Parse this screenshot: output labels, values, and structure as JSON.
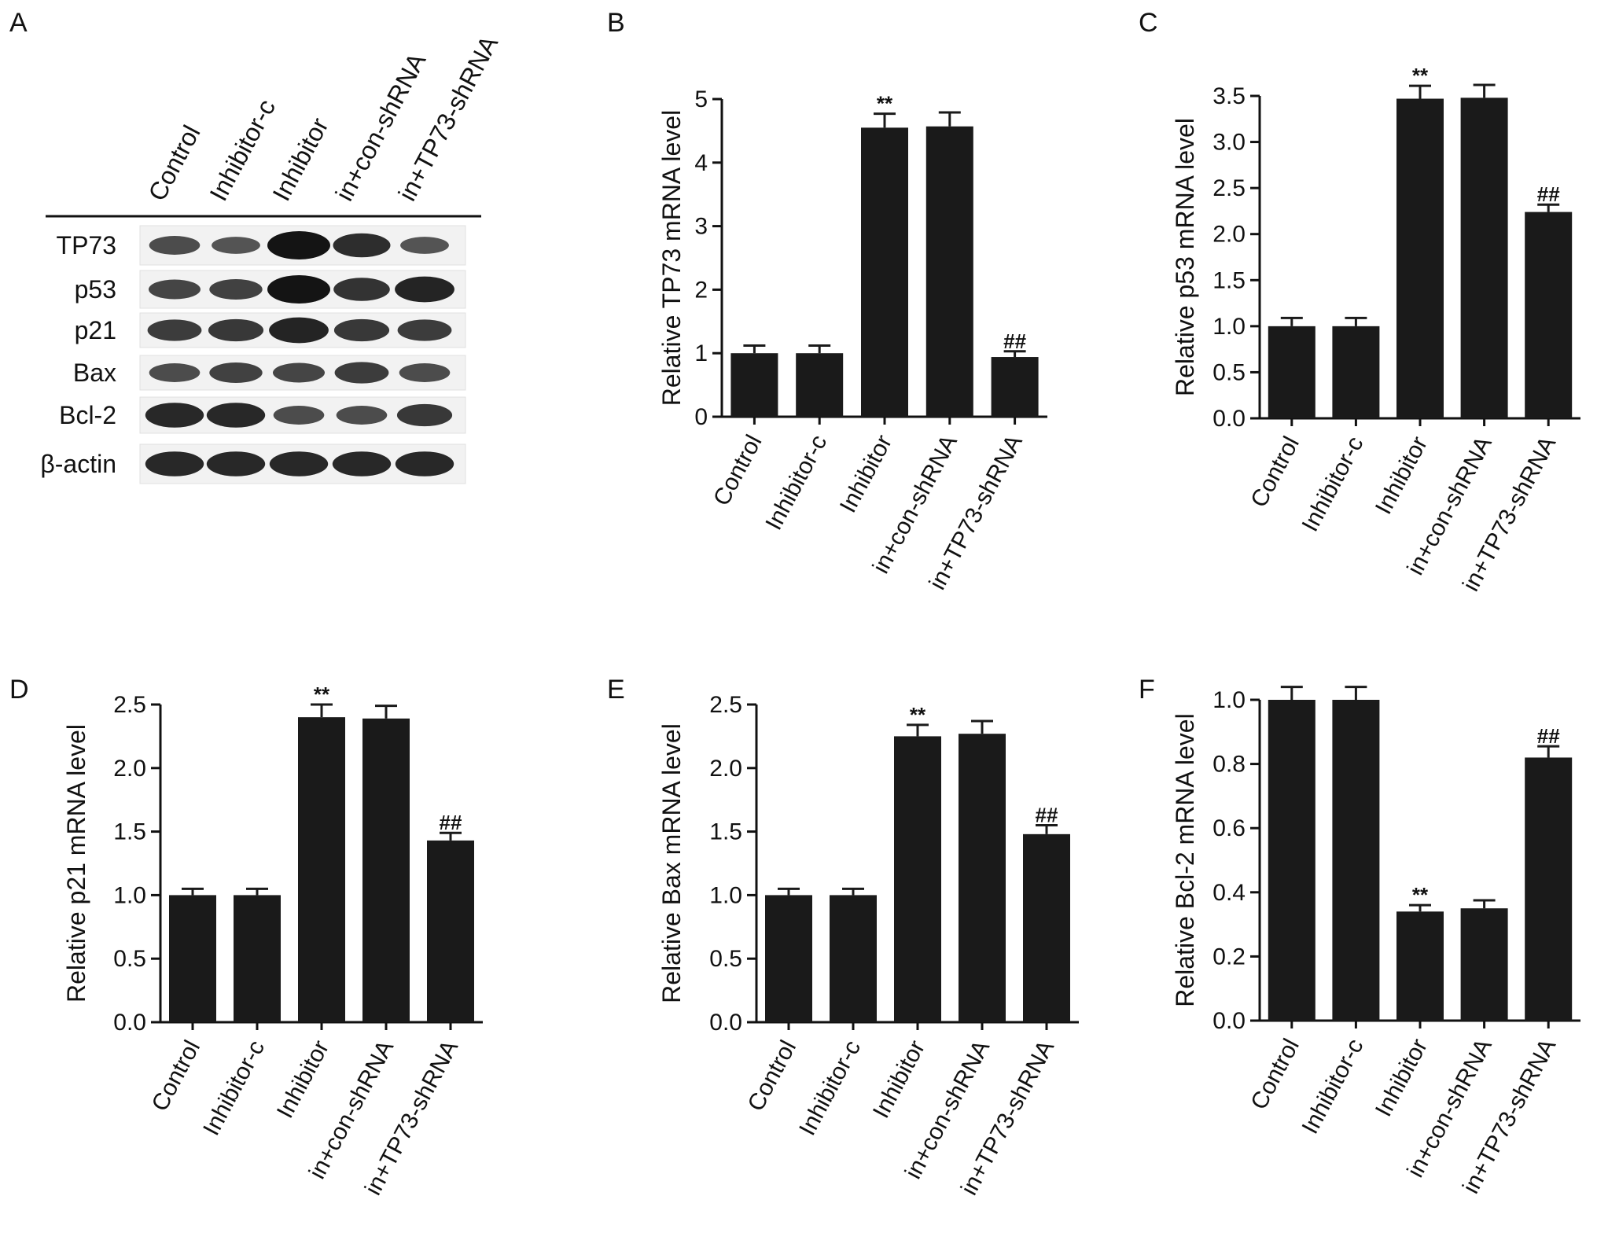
{
  "colors": {
    "bar": "#1a1a1a",
    "axis": "#111111",
    "background": "#ffffff",
    "band": "#141414"
  },
  "figure": {
    "panel_a": {
      "letter": "A",
      "lanes": [
        "Control",
        "Inhibitor-c",
        "Inhibitor",
        "in+con-shRNA",
        "in+TP73-shRNA"
      ],
      "rows": [
        {
          "label": "TP73",
          "intensity": [
            0.45,
            0.35,
            1.0,
            0.75,
            0.35
          ]
        },
        {
          "label": "p53",
          "intensity": [
            0.5,
            0.55,
            1.0,
            0.7,
            0.85
          ]
        },
        {
          "label": "p21",
          "intensity": [
            0.6,
            0.65,
            0.85,
            0.65,
            0.6
          ]
        },
        {
          "label": "Bax",
          "intensity": [
            0.45,
            0.55,
            0.5,
            0.6,
            0.45
          ]
        },
        {
          "label": "Bcl-2",
          "intensity": [
            0.8,
            0.8,
            0.45,
            0.45,
            0.65
          ]
        },
        {
          "label": "β-actin",
          "intensity": [
            0.8,
            0.8,
            0.8,
            0.8,
            0.8
          ]
        }
      ]
    }
  },
  "chart_data": [
    {
      "panel": "B",
      "type": "bar",
      "categories": [
        "Control",
        "Inhibitor-c",
        "Inhibitor",
        "in+con-shRNA",
        "in+TP73-shRNA"
      ],
      "values": [
        1.0,
        1.0,
        4.55,
        4.57,
        0.94
      ],
      "errors": [
        0.12,
        0.12,
        0.22,
        0.22,
        0.09
      ],
      "annotations": [
        "",
        "",
        "**",
        "",
        "##"
      ],
      "ylabel": "Relative TP73 mRNA level",
      "ylim": [
        0,
        5
      ],
      "yticks": [
        "0",
        "1",
        "2",
        "3",
        "4",
        "5"
      ]
    },
    {
      "panel": "C",
      "type": "bar",
      "categories": [
        "Control",
        "Inhibitor-c",
        "Inhibitor",
        "in+con-shRNA",
        "in+TP73-shRNA"
      ],
      "values": [
        1.0,
        1.0,
        3.47,
        3.48,
        2.24
      ],
      "errors": [
        0.09,
        0.09,
        0.14,
        0.14,
        0.08
      ],
      "annotations": [
        "",
        "",
        "**",
        "",
        "##"
      ],
      "ylabel": "Relative p53 mRNA level",
      "ylim": [
        0,
        3.5
      ],
      "yticks": [
        "0.0",
        "0.5",
        "1.0",
        "1.5",
        "2.0",
        "2.5",
        "3.0",
        "3.5"
      ]
    },
    {
      "panel": "D",
      "type": "bar",
      "categories": [
        "Control",
        "Inhibitor-c",
        "Inhibitor",
        "in+con-shRNA",
        "in+TP73-shRNA"
      ],
      "values": [
        1.0,
        1.0,
        2.4,
        2.39,
        1.43
      ],
      "errors": [
        0.05,
        0.05,
        0.1,
        0.1,
        0.06
      ],
      "annotations": [
        "",
        "",
        "**",
        "",
        "##"
      ],
      "ylabel": "Relative p21 mRNA level",
      "ylim": [
        0,
        2.5
      ],
      "yticks": [
        "0.0",
        "0.5",
        "1.0",
        "1.5",
        "2.0",
        "2.5"
      ]
    },
    {
      "panel": "E",
      "type": "bar",
      "categories": [
        "Control",
        "Inhibitor-c",
        "Inhibitor",
        "in+con-shRNA",
        "in+TP73-shRNA"
      ],
      "values": [
        1.0,
        1.0,
        2.25,
        2.27,
        1.48
      ],
      "errors": [
        0.05,
        0.05,
        0.09,
        0.1,
        0.07
      ],
      "annotations": [
        "",
        "",
        "**",
        "",
        "##"
      ],
      "ylabel": "Relative Bax mRNA level",
      "ylim": [
        0,
        2.5
      ],
      "yticks": [
        "0.0",
        "0.5",
        "1.0",
        "1.5",
        "2.0",
        "2.5"
      ]
    },
    {
      "panel": "F",
      "type": "bar",
      "categories": [
        "Control",
        "Inhibitor-c",
        "Inhibitor",
        "in+con-shRNA",
        "in+TP73-shRNA"
      ],
      "values": [
        1.0,
        1.0,
        0.34,
        0.35,
        0.82
      ],
      "errors": [
        0.04,
        0.04,
        0.02,
        0.025,
        0.035
      ],
      "annotations": [
        "",
        "",
        "**",
        "",
        "##"
      ],
      "ylabel": "Relative Bcl-2 mRNA level",
      "ylim": [
        0,
        1.0
      ],
      "yticks": [
        "0.0",
        "0.2",
        "0.4",
        "0.6",
        "0.8",
        "1.0"
      ]
    }
  ]
}
